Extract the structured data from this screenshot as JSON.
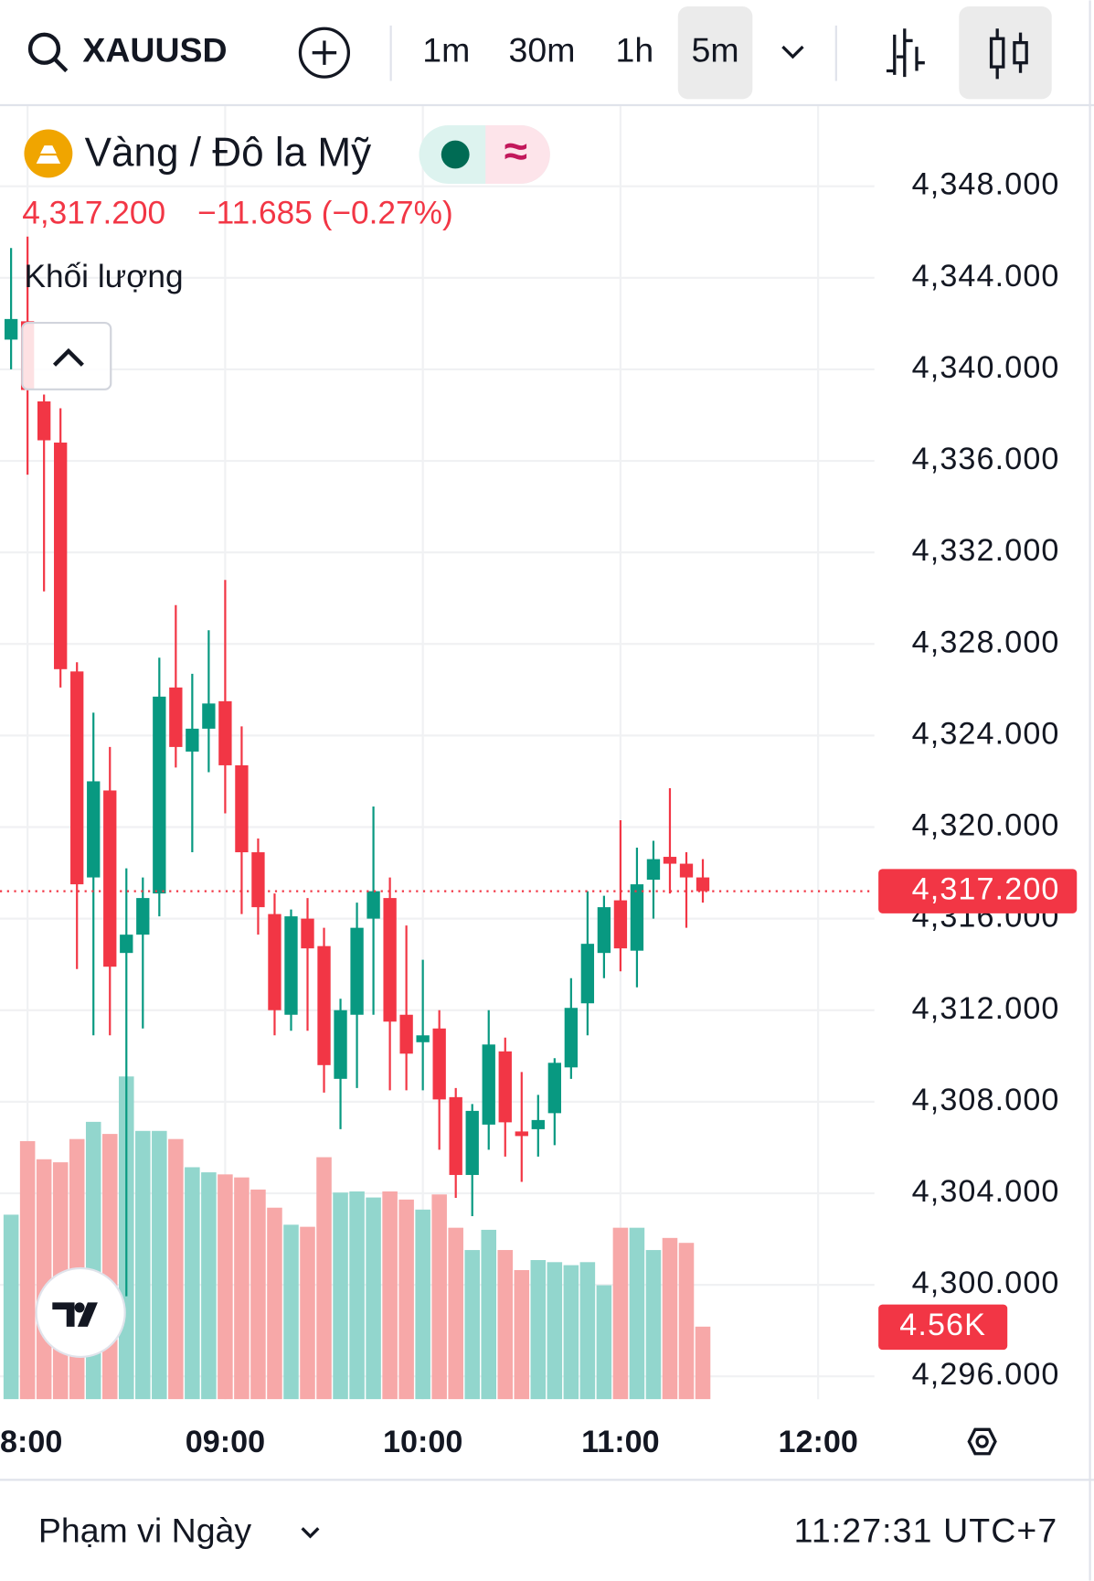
{
  "ui": {
    "symbol": "XAUUSD",
    "intervals": [
      "1m",
      "30m",
      "1h",
      "5m"
    ],
    "selected_interval": "5m",
    "range": "Phạm vi Ngày",
    "clock": "11:27:31 UTC+7"
  },
  "chart_data": {
    "type": "candlestick",
    "title": "Vàng / Đô la Mỹ",
    "change_text": "−11.685 (−0.27%)",
    "last": {
      "value": 4317.2,
      "label": "4,317.200"
    },
    "categories": [
      null,
      "8:00",
      null,
      null,
      null,
      null,
      null,
      null,
      null,
      null,
      null,
      null,
      null,
      "09:00",
      null,
      null,
      null,
      null,
      null,
      null,
      null,
      null,
      null,
      null,
      null,
      "10:00",
      null,
      null,
      null,
      null,
      null,
      null,
      null,
      null,
      null,
      null,
      null,
      "11:00",
      null,
      null,
      null,
      null,
      null,
      null,
      null,
      null,
      null,
      null,
      null,
      "12:00"
    ],
    "open": [
      4341.3,
      4342.1,
      4338.6,
      4336.8,
      4326.8,
      4317.8,
      4321.6,
      4314.5,
      4315.3,
      4317.1,
      4326.1,
      4323.3,
      4324.3,
      4325.5,
      4322.7,
      4318.9,
      4316.2,
      4311.8,
      4316.0,
      4314.8,
      4309.0,
      4311.8,
      4316.0,
      4316.9,
      4311.8,
      4310.6,
      4311.2,
      4308.2,
      4304.8,
      4307.0,
      4310.2,
      4306.7,
      4306.8,
      4307.5,
      4309.5,
      4312.3,
      4314.5,
      4316.8,
      4314.6,
      4317.7,
      4318.7,
      4318.4,
      4317.8,
      null,
      null,
      null,
      null,
      null,
      null,
      null
    ],
    "high": [
      4345.3,
      4345.8,
      4338.9,
      4338.3,
      4327.2,
      4325.0,
      4323.5,
      4318.2,
      4317.8,
      4327.4,
      4329.7,
      4326.7,
      4328.6,
      4330.8,
      4324.4,
      4319.5,
      4317.1,
      4316.4,
      4316.9,
      4315.6,
      4312.5,
      4316.7,
      4320.9,
      4317.8,
      4315.7,
      4314.2,
      4312.0,
      4308.6,
      4307.9,
      4312.0,
      4310.8,
      4309.3,
      4308.3,
      4309.9,
      4313.4,
      4317.2,
      4317.0,
      4320.3,
      4319.1,
      4319.4,
      4321.7,
      4318.9,
      4318.6,
      null,
      null,
      null,
      null,
      null,
      null,
      null
    ],
    "low": [
      4340.0,
      4335.4,
      4330.3,
      4326.1,
      4313.8,
      4310.9,
      4310.9,
      4299.5,
      4311.2,
      4316.1,
      4322.6,
      4318.9,
      4322.4,
      4320.6,
      4316.2,
      4315.3,
      4310.9,
      4311.1,
      4311.1,
      4308.4,
      4306.8,
      4308.6,
      4311.8,
      4308.5,
      4308.5,
      4308.5,
      4305.9,
      4303.8,
      4303.0,
      4305.9,
      4305.6,
      4304.5,
      4305.6,
      4306.1,
      4309.0,
      4310.9,
      4313.4,
      4313.7,
      4313.0,
      4316.0,
      4317.1,
      4315.6,
      4316.7,
      null,
      null,
      null,
      null,
      null,
      null,
      null
    ],
    "close": [
      4342.2,
      4339.1,
      4336.9,
      4326.9,
      4317.5,
      4322.0,
      4313.9,
      4315.3,
      4316.9,
      4325.7,
      4323.5,
      4324.3,
      4325.4,
      4322.7,
      4318.9,
      4316.5,
      4312.0,
      4316.1,
      4314.7,
      4309.6,
      4312.0,
      4315.6,
      4317.2,
      4311.5,
      4310.1,
      4310.9,
      4308.1,
      4304.8,
      4307.6,
      4310.5,
      4307.1,
      4306.5,
      4307.2,
      4309.7,
      4312.1,
      4314.9,
      4316.5,
      4314.7,
      4317.5,
      4318.6,
      4318.4,
      4317.8,
      4317.2,
      null,
      null,
      null,
      null,
      null,
      null,
      null
    ],
    "volume": {
      "name": "Khối lượng",
      "values": [
        11590,
        16210,
        15070,
        14880,
        16340,
        17420,
        16660,
        20270,
        16850,
        16850,
        16340,
        14570,
        14250,
        14120,
        13930,
        13170,
        12030,
        10960,
        10830,
        15200,
        12980,
        13050,
        12670,
        13050,
        12540,
        11910,
        12860,
        10770,
        9370,
        10640,
        9370,
        8110,
        8740,
        8610,
        8420,
        8610,
        7160,
        10770,
        10770,
        9370,
        10130,
        9820,
        4560,
        null,
        null,
        null,
        null,
        null,
        null,
        null
      ],
      "value_labels": [
        null,
        null,
        null,
        null,
        null,
        null,
        null,
        null,
        null,
        null,
        null,
        null,
        null,
        null,
        null,
        null,
        null,
        null,
        null,
        null,
        null,
        null,
        null,
        null,
        null,
        null,
        null,
        null,
        null,
        null,
        null,
        null,
        null,
        null,
        null,
        null,
        null,
        null,
        null,
        null,
        null,
        null,
        "4.56K",
        null,
        null,
        null,
        null,
        null,
        null,
        null
      ]
    },
    "vlim": [
      0,
      25000
    ],
    "ylim": [
      4295,
      4351.5
    ],
    "yticks": [
      {
        "value": 4348,
        "label": "4,348.000"
      },
      {
        "value": 4344,
        "label": "4,344.000"
      },
      {
        "value": 4340,
        "label": "4,340.000"
      },
      {
        "value": 4336,
        "label": "4,336.000"
      },
      {
        "value": 4332,
        "label": "4,332.000"
      },
      {
        "value": 4328,
        "label": "4,328.000"
      },
      {
        "value": 4324,
        "label": "4,324.000"
      },
      {
        "value": 4320,
        "label": "4,320.000"
      },
      {
        "value": 4316,
        "label": "4,316.000"
      },
      {
        "value": 4312,
        "label": "4,312.000"
      },
      {
        "value": 4308,
        "label": "4,308.000"
      },
      {
        "value": 4304,
        "label": "4,304.000"
      },
      {
        "value": 4300,
        "label": "4,300.000"
      },
      {
        "value": 4296,
        "label": "4,296.000"
      }
    ],
    "grid": true,
    "up_color": "#089981",
    "down_color": "#f23645",
    "volume_up_color": "#92d6cd",
    "volume_down_color": "#f7a8a8"
  }
}
